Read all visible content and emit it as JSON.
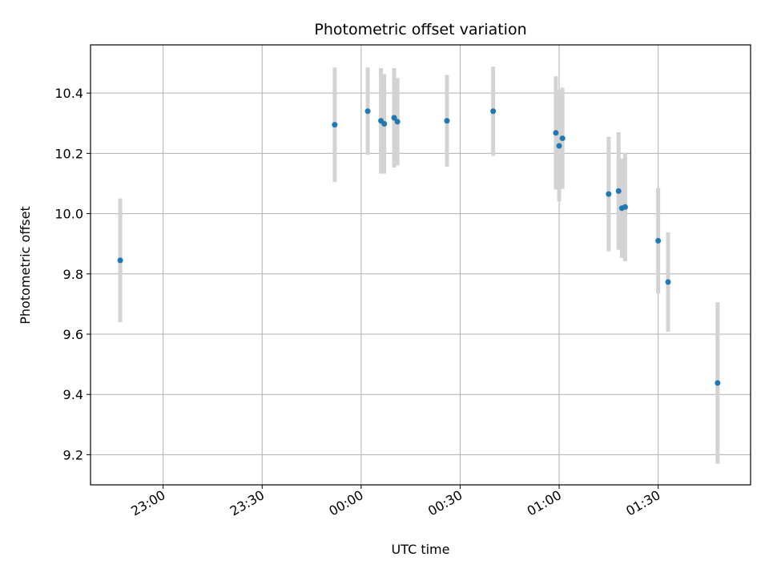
{
  "chart_data": {
    "type": "scatter",
    "title": "Photometric offset variation",
    "xlabel": "UTC time",
    "ylabel": "Photometric offset",
    "x_ticks": [
      "23:00",
      "23:30",
      "00:00",
      "00:30",
      "01:00",
      "01:30"
    ],
    "y_ticks": [
      "9.2",
      "9.4",
      "9.6",
      "9.8",
      "10.0",
      "10.2",
      "10.4"
    ],
    "xlim": [
      "22:38",
      "01:58"
    ],
    "ylim": [
      9.1,
      10.56
    ],
    "grid": true,
    "marker_color": "#1f77b4",
    "errorbar_color": "#d3d3d3",
    "series": [
      {
        "points": [
          {
            "x": "22:47",
            "y": 9.845,
            "yerr": 0.205
          },
          {
            "x": "23:52",
            "y": 10.295,
            "yerr": 0.19
          },
          {
            "x": "00:02",
            "y": 10.34,
            "yerr": 0.145
          },
          {
            "x": "00:06",
            "y": 10.308,
            "yerr": 0.175
          },
          {
            "x": "00:07",
            "y": 10.298,
            "yerr": 0.165
          },
          {
            "x": "00:10",
            "y": 10.318,
            "yerr": 0.165
          },
          {
            "x": "00:11",
            "y": 10.305,
            "yerr": 0.145
          },
          {
            "x": "00:26",
            "y": 10.308,
            "yerr": 0.152
          },
          {
            "x": "00:40",
            "y": 10.34,
            "yerr": 0.148
          },
          {
            "x": "00:59",
            "y": 10.268,
            "yerr": 0.188
          },
          {
            "x": "01:00",
            "y": 10.225,
            "yerr": 0.185
          },
          {
            "x": "01:01",
            "y": 10.25,
            "yerr": 0.168
          },
          {
            "x": "01:15",
            "y": 10.065,
            "yerr": 0.19
          },
          {
            "x": "01:18",
            "y": 10.075,
            "yerr": 0.195
          },
          {
            "x": "01:19",
            "y": 10.018,
            "yerr": 0.165
          },
          {
            "x": "01:20",
            "y": 10.022,
            "yerr": 0.18
          },
          {
            "x": "01:30",
            "y": 9.91,
            "yerr": 0.175
          },
          {
            "x": "01:33",
            "y": 9.773,
            "yerr": 0.165
          },
          {
            "x": "01:48",
            "y": 9.438,
            "yerr": 0.268
          }
        ]
      }
    ]
  }
}
